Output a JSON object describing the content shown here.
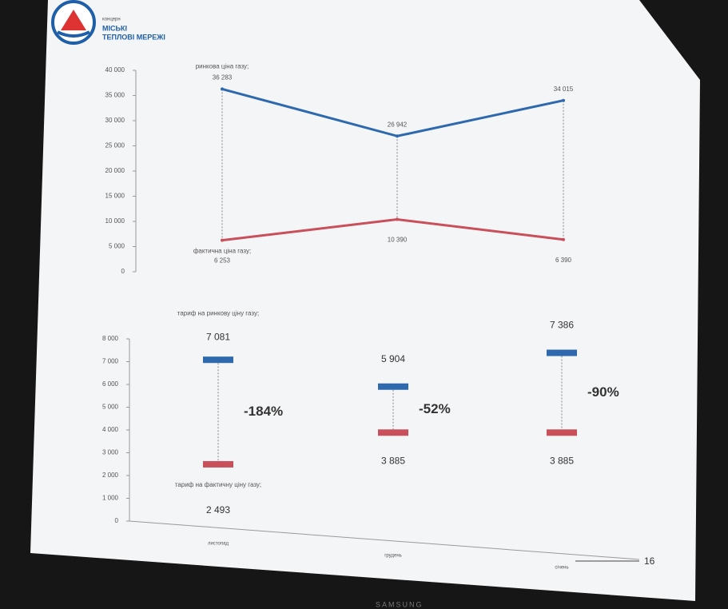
{
  "header": {
    "org": "концерн",
    "title_lines": [
      "МІСЬКІ",
      "ТЕПЛОВІ МЕРЕЖІ"
    ]
  },
  "page_number": "16",
  "monitor_brand": "SAMSUNG",
  "chart_data": [
    {
      "type": "line",
      "series": [
        {
          "name": "ринкова ціна газу;",
          "color": "#2e68ad",
          "values": [
            36283,
            26942,
            34015
          ],
          "value_labels": [
            "36 283",
            "26 942",
            "34 015"
          ]
        },
        {
          "name": "фактична ціна газу;",
          "color": "#c9505a",
          "values": [
            6253,
            10390,
            6390
          ],
          "value_labels": [
            "6 253",
            "10 390",
            "6 390"
          ]
        }
      ],
      "ylim": [
        0,
        40000
      ],
      "yticks": [
        0,
        {
          "value": 5000,
          "label": "5 000"
        },
        {
          "value": 10000,
          "label": "10 000"
        },
        {
          "value": 15000,
          "label": "15 000"
        },
        {
          "value": 20000,
          "label": "20 000"
        },
        {
          "value": 25000,
          "label": "25 000"
        },
        {
          "value": 30000,
          "label": "30 000"
        },
        {
          "value": 35000,
          "label": "35 000"
        },
        {
          "value": 40000,
          "label": "40 000"
        }
      ]
    },
    {
      "type": "range",
      "categories": [
        "листопад",
        "грудень",
        "січень"
      ],
      "series": [
        {
          "name": "тариф на ринкову ціну газу;",
          "color": "#2e68ad",
          "values": [
            7081,
            5904,
            7386
          ],
          "value_labels": [
            "7 081",
            "5 904",
            "7 386"
          ]
        },
        {
          "name": "тариф на фактичну ціну газу;",
          "color": "#c9505a",
          "values": [
            2493,
            3885,
            3885
          ],
          "value_labels": [
            "2 493",
            "3 885",
            "3 885"
          ]
        }
      ],
      "diff_labels": [
        "-184%",
        "-52%",
        "-90%"
      ],
      "ylim": [
        0,
        8000
      ],
      "yticks": [
        0,
        {
          "value": 1000,
          "label": "1 000"
        },
        {
          "value": 2000,
          "label": "2 000"
        },
        {
          "value": 3000,
          "label": "3 000"
        },
        {
          "value": 4000,
          "label": "4 000"
        },
        {
          "value": 5000,
          "label": "5 000"
        },
        {
          "value": 6000,
          "label": "6 000"
        },
        {
          "value": 7000,
          "label": "7 000"
        },
        {
          "value": 8000,
          "label": "8 000"
        }
      ]
    }
  ]
}
